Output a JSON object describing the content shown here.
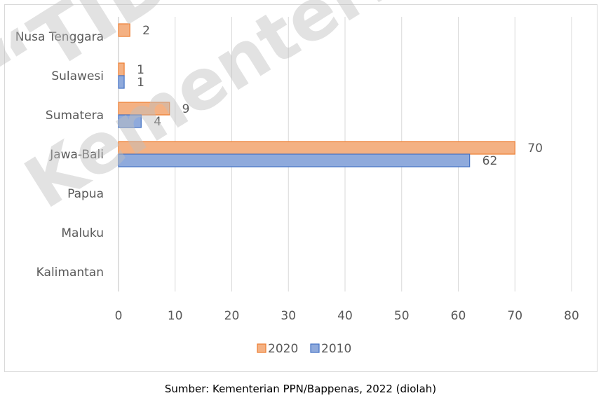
{
  "chart_data": {
    "type": "bar",
    "orientation": "horizontal",
    "categories": [
      "Nusa Tenggara",
      "Sulawesi",
      "Sumatera",
      "Jawa-Bali",
      "Papua",
      "Maluku",
      "Kalimantan"
    ],
    "series": [
      {
        "name": "2020",
        "values": [
          2,
          1,
          9,
          70,
          null,
          null,
          null
        ],
        "color": "#f4b183",
        "border": "#ed7d31"
      },
      {
        "name": "2010",
        "values": [
          null,
          1,
          4,
          62,
          null,
          null,
          null
        ],
        "color": "#8faadc",
        "border": "#4472c4"
      }
    ],
    "xlim": [
      0,
      80
    ],
    "xticks": [
      0,
      10,
      20,
      30,
      40,
      50,
      60,
      70,
      80
    ],
    "grid": true,
    "legend_position": "bottom"
  },
  "source_text": "Sumber: Kementerian PPN/Bappenas, 2022 (diolah)",
  "watermark": [
    "“TIDAK",
    "Kementerian"
  ]
}
